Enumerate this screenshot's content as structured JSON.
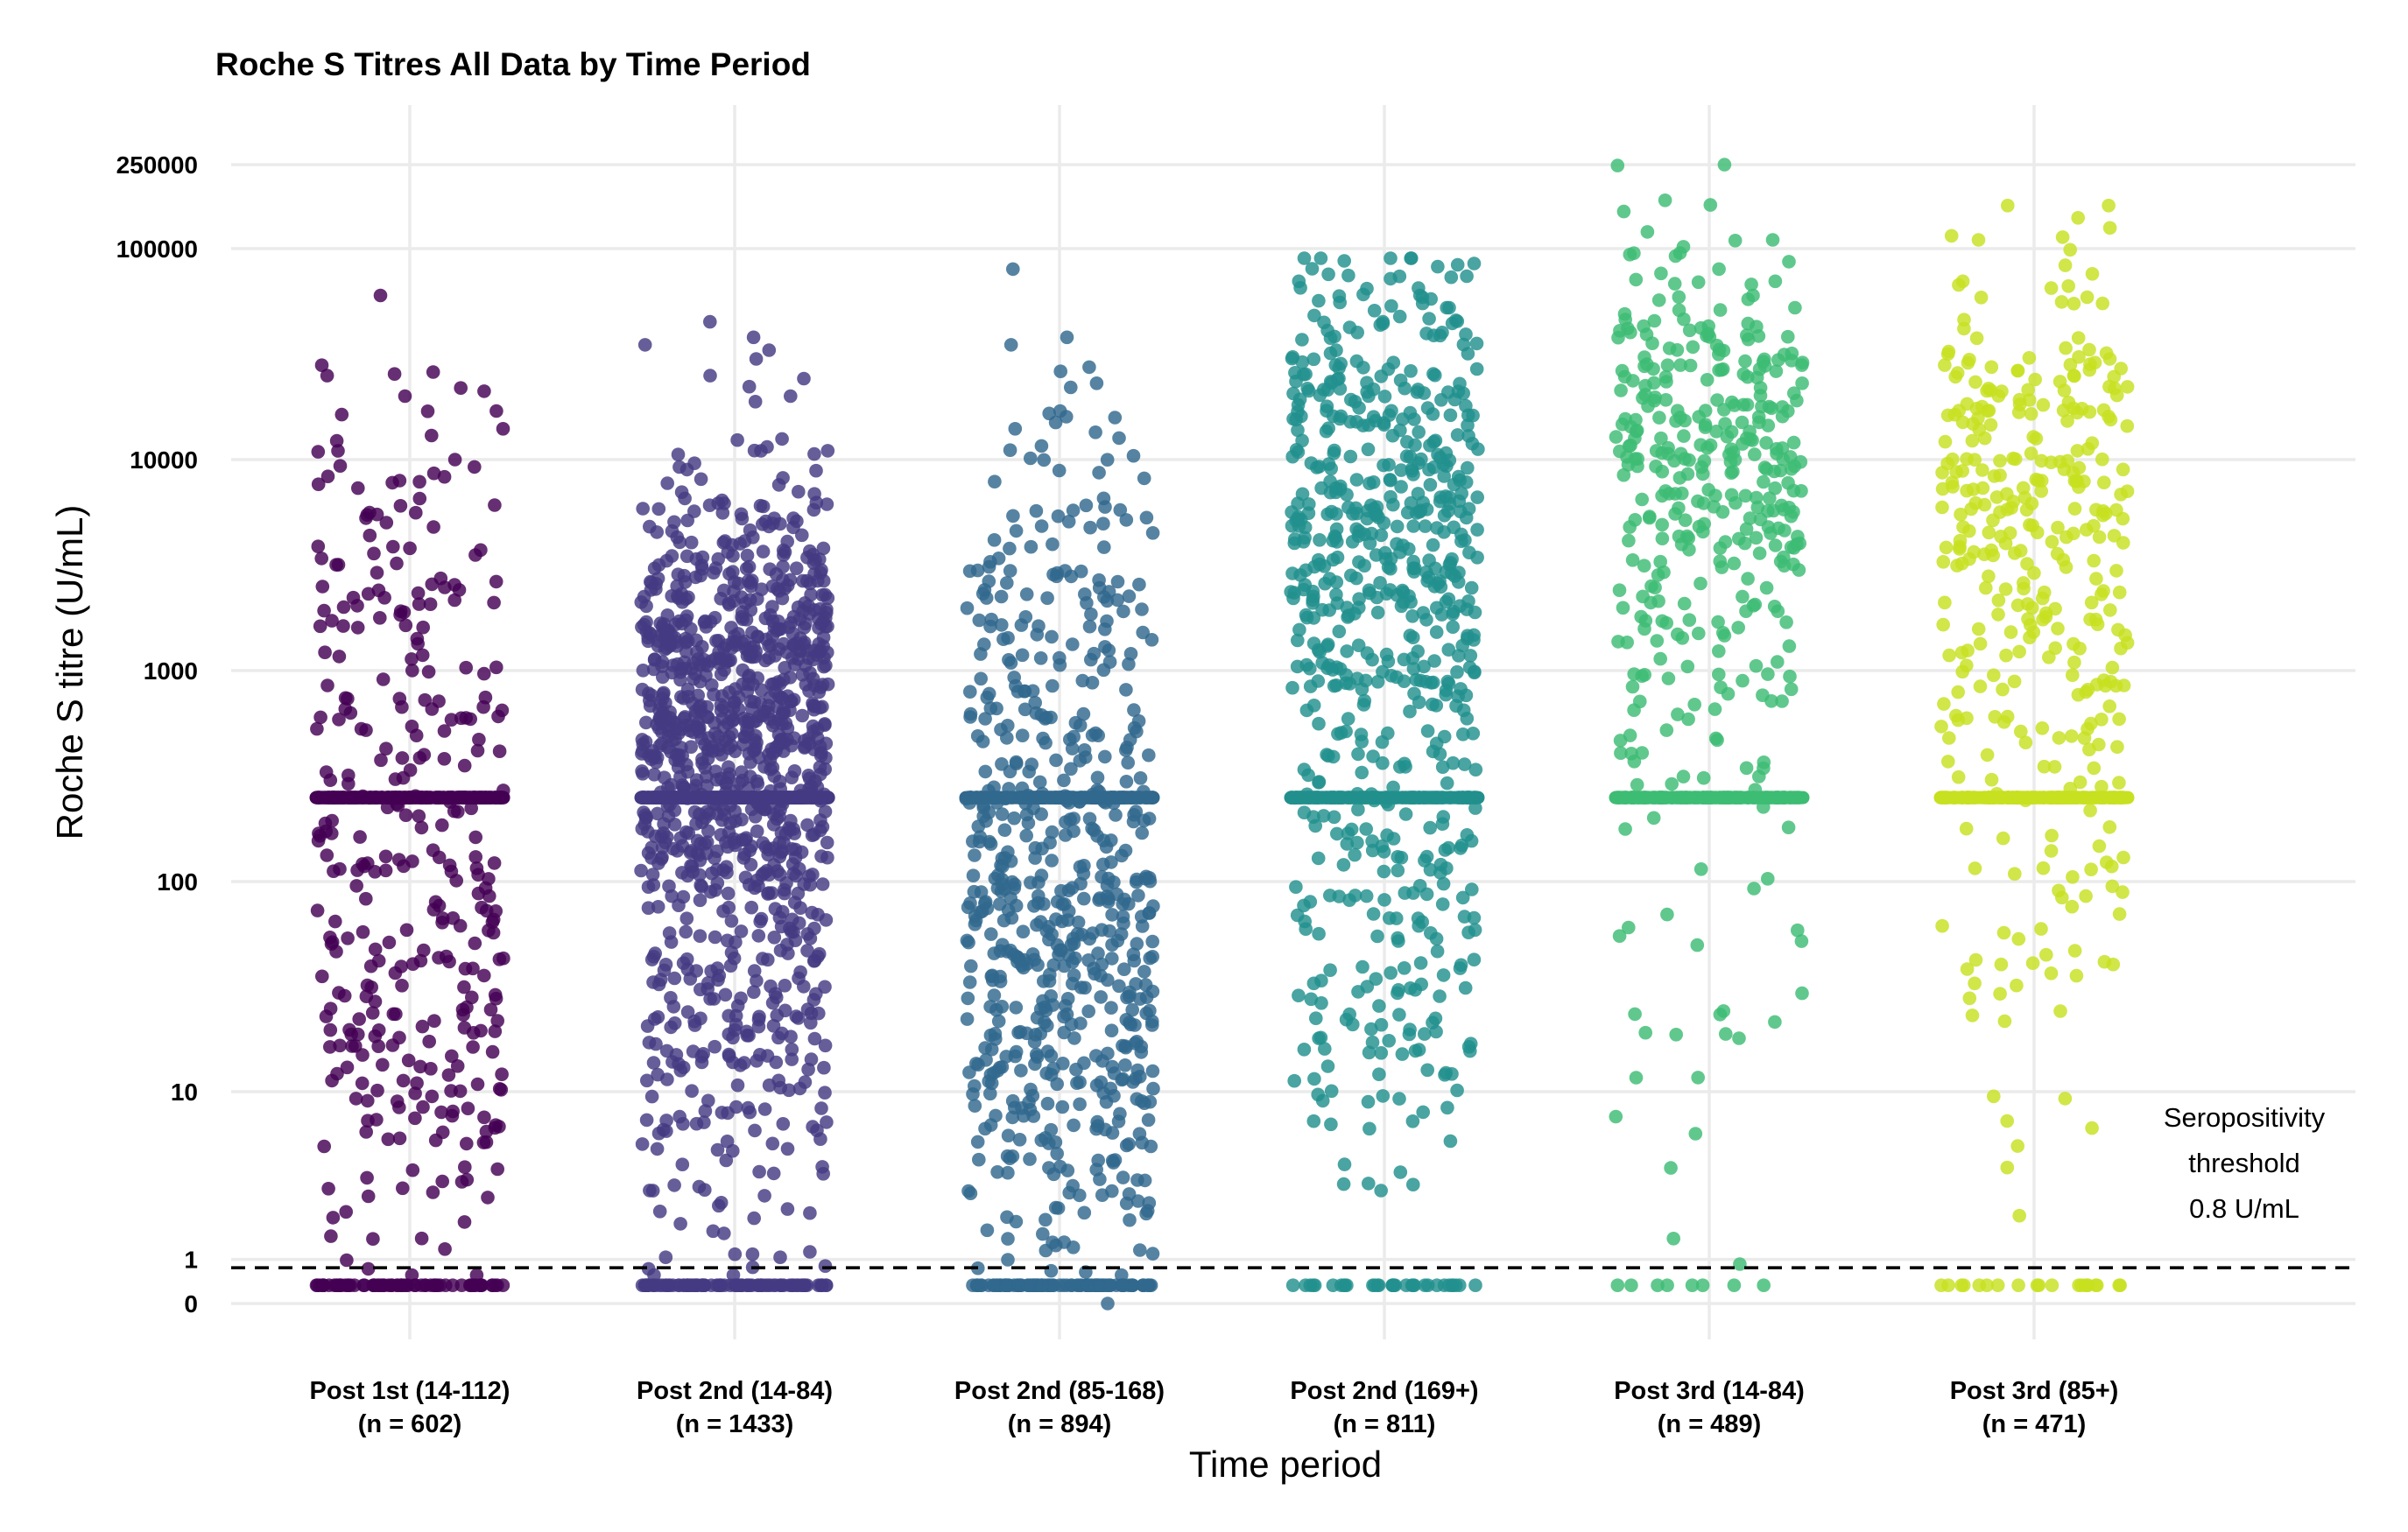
{
  "chart_data": {
    "type": "scatter",
    "title": "Roche S Titres All Data by Time Period",
    "xlabel": "Time period",
    "ylabel": "Roche S titre (U/mL)",
    "y_scale": "pseudo-log",
    "y_ticks": [
      0,
      1,
      10,
      100,
      1000,
      10000,
      100000,
      250000
    ],
    "y_tick_labels": [
      "0",
      "1",
      "10",
      "100",
      "1000",
      "10000",
      "100000",
      "250000"
    ],
    "grid": true,
    "legend": "none",
    "categories": [
      {
        "label": "Post 1st (14-112)",
        "n_label": "(n = 602)",
        "n": 602,
        "color": "#440154"
      },
      {
        "label": "Post 2nd (14-84)",
        "n_label": "(n = 1433)",
        "n": 1433,
        "color": "#443a83"
      },
      {
        "label": "Post 2nd (85-168)",
        "n_label": "(n = 894)",
        "n": 894,
        "color": "#31688e"
      },
      {
        "label": "Post 2nd (169+)",
        "n_label": "(n = 811)",
        "n": 811,
        "color": "#21908d"
      },
      {
        "label": "Post 3rd (14-84)",
        "n_label": "(n = 489)",
        "n": 489,
        "color": "#3dbc74"
      },
      {
        "label": "Post 3rd (85+)",
        "n_label": "(n = 471)",
        "n": 471,
        "color": "#c7e020"
      }
    ],
    "series": [
      {
        "category": "Post 1st (14-112)",
        "approx_distribution": {
          "min": 0.4,
          "upper_limit": 250,
          "max": 60000
        },
        "notable_points": [
          60000,
          28000,
          26000,
          25000,
          20000,
          17000,
          14000,
          13000,
          11000,
          10000
        ]
      },
      {
        "category": "Post 2nd (14-84)",
        "approx_distribution": {
          "min": 0.4,
          "upper_limit": 250,
          "max": 45000
        },
        "notable_points": [
          45000,
          38000,
          35000,
          33000,
          30000,
          25000,
          20000
        ]
      },
      {
        "category": "Post 2nd (85-168)",
        "approx_distribution": {
          "min": 0,
          "upper_limit": 250,
          "max": 80000
        },
        "notable_points": [
          80000,
          38000,
          35000,
          23000,
          22000,
          17000,
          15000,
          14000
        ]
      },
      {
        "category": "Post 2nd (169+)",
        "approx_distribution": {
          "min": 0.4,
          "upper_limit": 250,
          "max": 90000
        },
        "notable_points": [
          90000,
          85000,
          70000,
          65000,
          60000,
          55000,
          45000
        ]
      },
      {
        "category": "Post 3rd (14-84)",
        "approx_distribution": {
          "min": 0.4,
          "upper_limit": 250,
          "max": 250000
        },
        "notable_points": [
          250000,
          150000,
          120000,
          110000,
          80000,
          70000,
          60000
        ]
      },
      {
        "category": "Post 3rd (85+)",
        "approx_distribution": {
          "min": 0.4,
          "upper_limit": 250,
          "max": 160000
        },
        "notable_points": [
          160000,
          140000,
          115000,
          110000,
          70000,
          65000,
          55000
        ]
      }
    ],
    "reference_line": {
      "value": 0.8,
      "style": "dashed"
    },
    "annotation": {
      "lines": [
        "Seropositivity",
        "threshold",
        "0.8 U/mL"
      ]
    }
  }
}
